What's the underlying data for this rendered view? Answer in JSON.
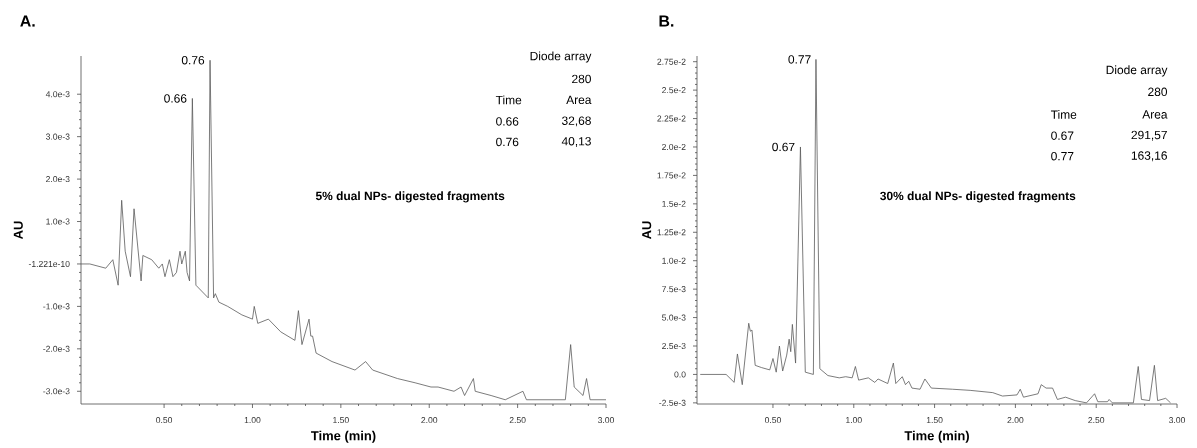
{
  "chart_data": [
    {
      "type": "line",
      "title": "A.",
      "xlabel": "Time (min)",
      "ylabel": "AU",
      "xlim": [
        0.03,
        3.0
      ],
      "xticks": [
        {
          "value": 0.5,
          "label": "0.50"
        },
        {
          "value": 1.0,
          "label": "1.00"
        },
        {
          "value": 1.5,
          "label": "1.50"
        },
        {
          "value": 2.0,
          "label": "2.00"
        },
        {
          "value": 2.5,
          "label": "2.50"
        },
        {
          "value": 3.0,
          "label": "3.00"
        }
      ],
      "ylim": [
        -0.0033,
        0.0049
      ],
      "yticks": [
        {
          "value": -0.003,
          "label": "-3.0e-3"
        },
        {
          "value": -0.002,
          "label": "-2.0e-3"
        },
        {
          "value": -0.001,
          "label": "-1.0e-3"
        },
        {
          "value": -1.221e-10,
          "label": "-1.221e-10"
        },
        {
          "value": 0.001,
          "label": "1.0e-3"
        },
        {
          "value": 0.002,
          "label": "2.0e-3"
        },
        {
          "value": 0.003,
          "label": "3.0e-3"
        },
        {
          "value": 0.004,
          "label": "4.0e-3"
        }
      ],
      "x": [
        0.03,
        0.08,
        0.17,
        0.21,
        0.24,
        0.26,
        0.28,
        0.31,
        0.33,
        0.37,
        0.38,
        0.43,
        0.47,
        0.49,
        0.505,
        0.53,
        0.55,
        0.57,
        0.59,
        0.6,
        0.62,
        0.63,
        0.644,
        0.66,
        0.68,
        0.75,
        0.76,
        0.78,
        0.79,
        0.81,
        0.86,
        0.94,
        1.0,
        1.01,
        1.03,
        1.09,
        1.16,
        1.24,
        1.26,
        1.28,
        1.32,
        1.33,
        1.34,
        1.36,
        1.45,
        1.58,
        1.64,
        1.68,
        1.82,
        1.92,
        2.01,
        2.05,
        2.14,
        2.18,
        2.2,
        2.25,
        2.26,
        2.35,
        2.43,
        2.53,
        2.55,
        2.63,
        2.77,
        2.8,
        2.82,
        2.87,
        2.89,
        2.91,
        2.95,
        3.0
      ],
      "series": [
        {
          "color": "#5a5a5a",
          "values": [
            0.0,
            0.0,
            -0.0001,
            0.0001,
            -0.0005,
            0.0015,
            0.0003,
            -0.0003,
            0.0013,
            -0.0004,
            0.0002,
            0.0001,
            -0.0001,
            0.0,
            -0.0003,
            0.0001,
            -0.0003,
            -0.0002,
            0.0003,
            0.0,
            0.0003,
            -0.0002,
            -0.0004,
            0.0039,
            -0.0005,
            -0.0008,
            0.0048,
            -0.0008,
            -0.0007,
            -0.0009,
            -0.001,
            -0.0012,
            -0.0013,
            -0.001,
            -0.0014,
            -0.0013,
            -0.0016,
            -0.0018,
            -0.0011,
            -0.0019,
            -0.0013,
            -0.0017,
            -0.0017,
            -0.0021,
            -0.0023,
            -0.0025,
            -0.0023,
            -0.0025,
            -0.0027,
            -0.0028,
            -0.0029,
            -0.0029,
            -0.003,
            -0.0029,
            -0.0031,
            -0.0027,
            -0.003,
            -0.0031,
            -0.0032,
            -0.003,
            -0.0032,
            -0.0032,
            -0.0032,
            -0.0019,
            -0.0029,
            -0.0031,
            -0.0027,
            -0.0032,
            -0.0032,
            -0.0032
          ]
        }
      ],
      "annotations": [
        "Diode array",
        "280",
        "Time",
        "Area",
        "0.66",
        "32,68",
        "0.76",
        "40,13",
        "5% dual NPs- digested fragments",
        {
          "text": "0.76",
          "x": 0.76,
          "y": 0.0048
        },
        {
          "text": "0.66",
          "x": 0.66,
          "y": 0.0039
        }
      ]
    },
    {
      "type": "line",
      "title": "B.",
      "xlabel": "Time (min)",
      "ylabel": "AU",
      "xlim": [
        0.03,
        3.0
      ],
      "xticks": [
        {
          "value": 0.5,
          "label": "0.50"
        },
        {
          "value": 1.0,
          "label": "1.00"
        },
        {
          "value": 1.5,
          "label": "1.50"
        },
        {
          "value": 2.0,
          "label": "2.00"
        },
        {
          "value": 2.5,
          "label": "2.50"
        },
        {
          "value": 3.0,
          "label": "3.00"
        }
      ],
      "ylim": [
        -0.0026,
        0.028
      ],
      "yticks": [
        {
          "value": -0.0025,
          "label": "-2.5e-3"
        },
        {
          "value": 0,
          "label": "0.0"
        },
        {
          "value": 0.0025,
          "label": "2.5e-3"
        },
        {
          "value": 0.005,
          "label": "5.0e-3"
        },
        {
          "value": 0.0075,
          "label": "7.5e-3"
        },
        {
          "value": 0.01,
          "label": "1.0e-2"
        },
        {
          "value": 0.0125,
          "label": "1.25e-2"
        },
        {
          "value": 0.015,
          "label": "1.5e-2"
        },
        {
          "value": 0.0175,
          "label": "1.75e-2"
        },
        {
          "value": 0.02,
          "label": "2.0e-2"
        },
        {
          "value": 0.0225,
          "label": "2.25e-2"
        },
        {
          "value": 0.025,
          "label": "2.5e-2"
        },
        {
          "value": 0.0275,
          "label": "2.75e-2"
        }
      ],
      "x": [
        0.05,
        0.21,
        0.26,
        0.28,
        0.31,
        0.35,
        0.36,
        0.37,
        0.39,
        0.43,
        0.48,
        0.5,
        0.52,
        0.54,
        0.56,
        0.585,
        0.6,
        0.61,
        0.62,
        0.64,
        0.67,
        0.7,
        0.75,
        0.766,
        0.79,
        0.84,
        0.91,
        0.95,
        0.99,
        1.01,
        1.03,
        1.09,
        1.13,
        1.15,
        1.21,
        1.245,
        1.26,
        1.3,
        1.32,
        1.34,
        1.36,
        1.41,
        1.44,
        1.48,
        1.61,
        1.72,
        1.86,
        1.92,
        2.01,
        2.03,
        2.05,
        2.14,
        2.16,
        2.19,
        2.23,
        2.26,
        2.31,
        2.37,
        2.44,
        2.49,
        2.51,
        2.57,
        2.58,
        2.6,
        2.73,
        2.76,
        2.78,
        2.83,
        2.86,
        2.88,
        2.93,
        2.96
      ],
      "series": [
        {
          "color": "#5a5a5a",
          "values": [
            0,
            0,
            -0.0007,
            0.0018,
            -0.0009,
            0.0045,
            0.0038,
            0.0039,
            0.0008,
            0.0006,
            0.0004,
            0.0014,
            0.0002,
            0.0025,
            0.0003,
            0.0017,
            0.0031,
            0.002,
            0.0044,
            0.001,
            0.02,
            0.0002,
            0,
            0.0277,
            0.0005,
            -0.0001,
            -0.0003,
            -0.0002,
            -0.0003,
            0.0007,
            -0.0005,
            -0.0003,
            -0.0007,
            -0.0004,
            -0.0008,
            0.001,
            -0.0008,
            -0.0002,
            -0.0009,
            -0.0006,
            -0.0012,
            -0.0013,
            -0.0004,
            -0.0012,
            -0.0013,
            -0.0014,
            -0.0016,
            -0.0019,
            -0.0018,
            -0.0013,
            -0.002,
            -0.0017,
            -0.0009,
            -0.0012,
            -0.0012,
            -0.0022,
            -0.002,
            -0.0023,
            -0.0025,
            -0.0017,
            -0.0024,
            -0.0024,
            -0.0022,
            -0.0025,
            -0.0025,
            0.0007,
            -0.0022,
            -0.0023,
            0.0008,
            -0.0023,
            -0.0021,
            -0.0025
          ]
        }
      ],
      "annotations": [
        "Diode array",
        "280",
        "Time",
        "Area",
        "0.67",
        "291,57",
        "0.77",
        "163,16",
        "30% dual NPs- digested fragments",
        {
          "text": "0.77",
          "x": 0.77,
          "y": 0.0277
        },
        {
          "text": "0.67",
          "x": 0.67,
          "y": 0.02
        }
      ]
    }
  ]
}
